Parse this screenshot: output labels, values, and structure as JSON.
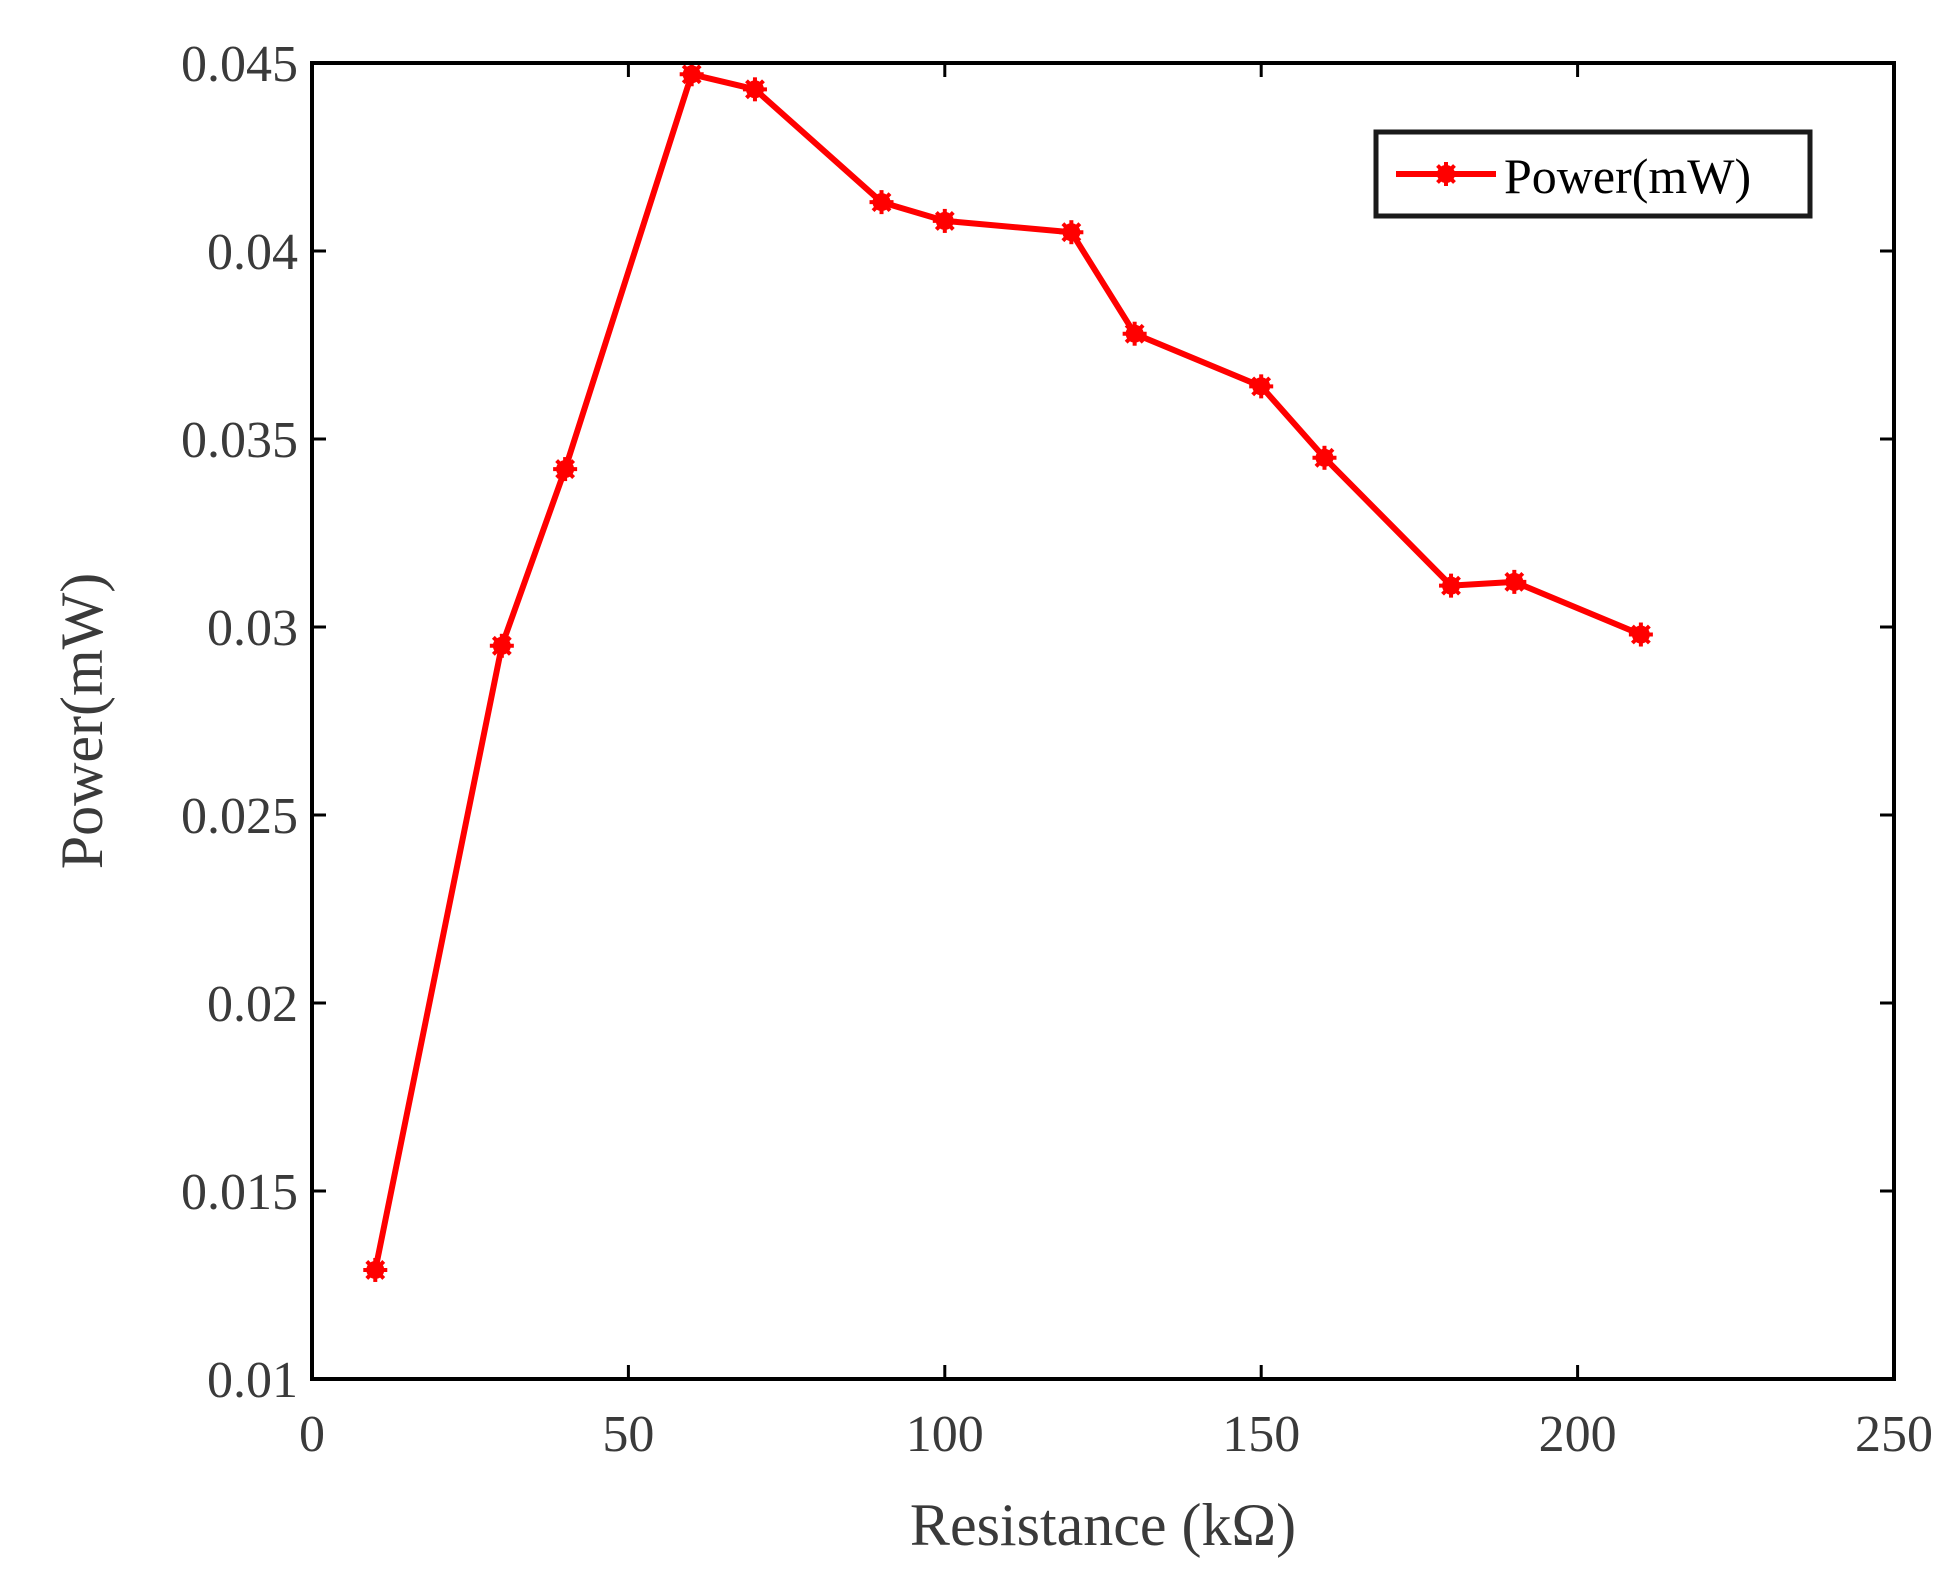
{
  "chart_data": {
    "type": "line",
    "title": "",
    "xlabel": "Resistance (kΩ)",
    "ylabel": "Power(mW)",
    "xlim": [
      0,
      250
    ],
    "ylim": [
      0.01,
      0.045
    ],
    "xticks": [
      0,
      50,
      100,
      150,
      200,
      250
    ],
    "xtick_labels": [
      "0",
      "50",
      "100",
      "150",
      "200",
      "250"
    ],
    "yticks": [
      0.01,
      0.015,
      0.02,
      0.025,
      0.03,
      0.035,
      0.04,
      0.045
    ],
    "ytick_labels": [
      "0.01",
      "0.015",
      "0.02",
      "0.025",
      "0.03",
      "0.035",
      "0.04",
      "0.045"
    ],
    "grid": false,
    "legend_position": "top-right",
    "series": [
      {
        "name": "Power(mW)",
        "color": "#ff0000",
        "marker": "asterisk",
        "x": [
          10,
          30,
          40,
          60,
          70,
          90,
          100,
          120,
          130,
          150,
          160,
          180,
          190,
          210
        ],
        "y": [
          0.0129,
          0.0295,
          0.0342,
          0.0447,
          0.0443,
          0.0413,
          0.0408,
          0.0405,
          0.0378,
          0.0364,
          0.0345,
          0.0311,
          0.0312,
          0.0298
        ]
      }
    ]
  }
}
